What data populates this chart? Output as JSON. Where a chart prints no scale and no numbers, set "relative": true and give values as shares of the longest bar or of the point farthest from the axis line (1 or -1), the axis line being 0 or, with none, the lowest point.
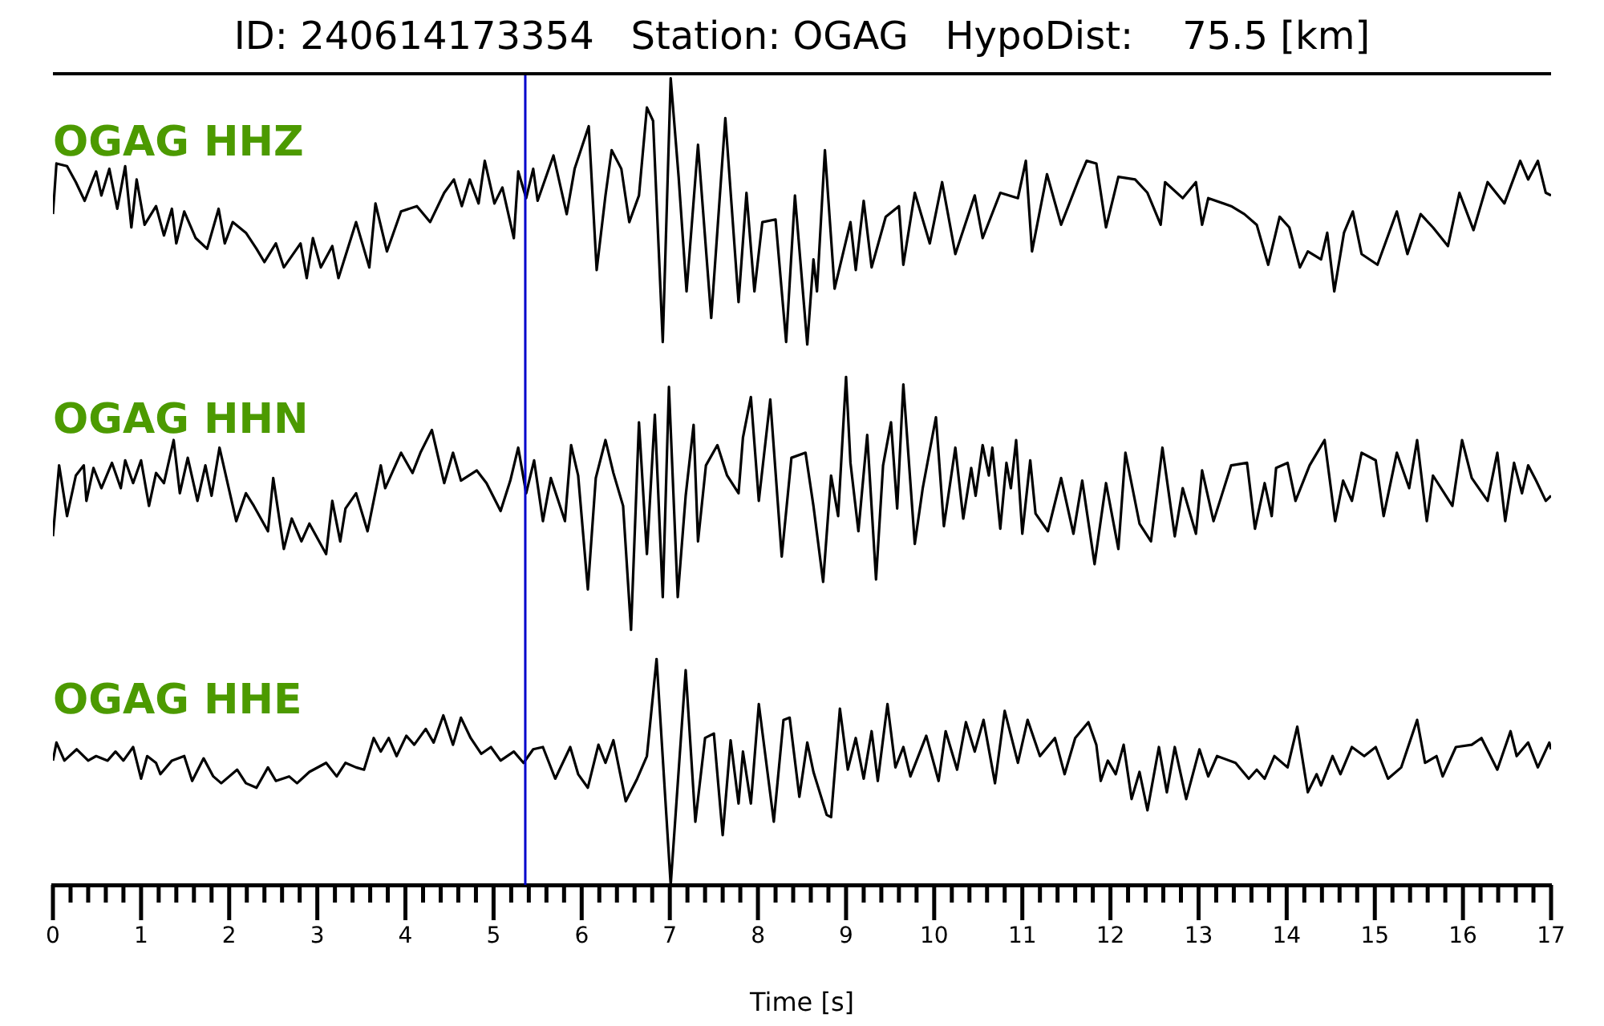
{
  "chart_data": [
    {
      "type": "line",
      "title": "ID: 240614173354   Station: OGAG   HypoDist:    75.5 [km]",
      "relative": true,
      "xlim": [
        0,
        17
      ],
      "tick_labels": false,
      "ref_lines": [
        {
          "axis": "x",
          "value": 5.36,
          "color": "#0000cc"
        }
      ],
      "series": [
        {
          "name": "OGAG HHZ",
          "color": "#000000",
          "x": [
            0,
            0.04,
            0.16,
            0.26,
            0.36,
            0.49,
            0.55,
            0.64,
            0.73,
            0.82,
            0.89,
            0.95,
            1.04,
            1.17,
            1.26,
            1.35,
            1.4,
            1.49,
            1.62,
            1.75,
            1.88,
            1.95,
            2.04,
            2.19,
            2.31,
            2.4,
            2.53,
            2.62,
            2.81,
            2.88,
            2.95,
            3.04,
            3.17,
            3.24,
            3.44,
            3.59,
            3.66,
            3.79,
            3.95,
            4.13,
            4.28,
            4.44,
            4.55,
            4.64,
            4.73,
            4.83,
            4.9,
            5.01,
            5.1,
            5.23,
            5.28,
            5.37,
            5.45,
            5.5,
            5.68,
            5.83,
            5.92,
            6.08,
            6.17,
            6.27,
            6.34,
            6.45,
            6.54,
            6.65,
            6.74,
            6.81,
            6.92,
            7.01,
            7.1,
            7.19,
            7.32,
            7.47,
            7.63,
            7.78,
            7.87,
            7.96,
            8.05,
            8.2,
            8.32,
            8.42,
            8.56,
            8.63,
            8.67,
            8.76,
            8.87,
            9.05,
            9.11,
            9.2,
            9.29,
            9.45,
            9.6,
            9.65,
            9.78,
            9.95,
            10.09,
            10.24,
            10.46,
            10.55,
            10.75,
            10.95,
            11.04,
            11.11,
            11.28,
            11.44,
            11.64,
            11.73,
            11.84,
            11.95,
            12.09,
            12.28,
            12.42,
            12.57,
            12.62,
            12.82,
            12.97,
            13.04,
            13.11,
            13.37,
            13.52,
            13.66,
            13.79,
            13.92,
            14.03,
            14.15,
            14.24,
            14.39,
            14.46,
            14.54,
            14.65,
            14.75,
            14.85,
            15.03,
            15.25,
            15.37,
            15.52,
            15.66,
            15.83,
            15.96,
            16.12,
            16.28,
            16.47,
            16.65,
            16.74,
            16.85,
            16.94,
            17
          ],
          "values": [
            0.49,
            0.68,
            0.67,
            0.61,
            0.54,
            0.65,
            0.56,
            0.66,
            0.51,
            0.67,
            0.44,
            0.62,
            0.45,
            0.52,
            0.41,
            0.51,
            0.38,
            0.5,
            0.4,
            0.36,
            0.51,
            0.38,
            0.46,
            0.42,
            0.36,
            0.31,
            0.38,
            0.29,
            0.38,
            0.25,
            0.4,
            0.29,
            0.37,
            0.25,
            0.46,
            0.29,
            0.53,
            0.35,
            0.5,
            0.52,
            0.46,
            0.57,
            0.62,
            0.52,
            0.62,
            0.53,
            0.69,
            0.53,
            0.59,
            0.4,
            0.65,
            0.55,
            0.66,
            0.54,
            0.71,
            0.49,
            0.66,
            0.82,
            0.28,
            0.56,
            0.73,
            0.66,
            0.46,
            0.56,
            0.89,
            0.84,
            0.01,
            1,
            0.63,
            0.2,
            0.75,
            0.1,
            0.85,
            0.16,
            0.57,
            0.2,
            0.46,
            0.47,
            0.01,
            0.56,
            0,
            0.32,
            0.2,
            0.73,
            0.21,
            0.46,
            0.28,
            0.54,
            0.29,
            0.48,
            0.52,
            0.3,
            0.57,
            0.38,
            0.61,
            0.34,
            0.56,
            0.4,
            0.57,
            0.55,
            0.69,
            0.35,
            0.64,
            0.45,
            0.62,
            0.69,
            0.68,
            0.44,
            0.63,
            0.62,
            0.57,
            0.45,
            0.61,
            0.55,
            0.61,
            0.45,
            0.55,
            0.52,
            0.49,
            0.45,
            0.3,
            0.48,
            0.44,
            0.29,
            0.35,
            0.32,
            0.42,
            0.2,
            0.42,
            0.5,
            0.34,
            0.3,
            0.5,
            0.34,
            0.49,
            0.44,
            0.37,
            0.57,
            0.43,
            0.61,
            0.53,
            0.69,
            0.62,
            0.69,
            0.57,
            0.56
          ]
        }
      ]
    },
    {
      "type": "line",
      "relative": true,
      "xlim": [
        0,
        17
      ],
      "tick_labels": false,
      "ref_lines": [
        {
          "axis": "x",
          "value": 5.36,
          "color": "#0000cc"
        }
      ],
      "series": [
        {
          "name": "OGAG HHN",
          "color": "#000000",
          "x": [
            0,
            0.07,
            0.16,
            0.26,
            0.35,
            0.38,
            0.46,
            0.55,
            0.67,
            0.77,
            0.82,
            0.91,
            1,
            1.09,
            1.17,
            1.26,
            1.37,
            1.44,
            1.53,
            1.64,
            1.73,
            1.8,
            1.89,
            2.08,
            2.19,
            2.28,
            2.44,
            2.5,
            2.62,
            2.71,
            2.82,
            2.91,
            3.1,
            3.17,
            3.26,
            3.32,
            3.44,
            3.57,
            3.72,
            3.77,
            3.95,
            4.08,
            4.17,
            4.3,
            4.44,
            4.54,
            4.63,
            4.81,
            4.92,
            5.08,
            5.19,
            5.28,
            5.37,
            5.46,
            5.56,
            5.65,
            5.81,
            5.88,
            5.96,
            6.07,
            6.16,
            6.27,
            6.36,
            6.47,
            6.56,
            6.65,
            6.74,
            6.83,
            6.92,
            6.99,
            7.09,
            7.18,
            7.27,
            7.32,
            7.41,
            7.54,
            7.65,
            7.78,
            7.83,
            7.92,
            8.01,
            8.14,
            8.27,
            8.38,
            8.54,
            8.63,
            8.74,
            8.83,
            8.91,
            9,
            9.05,
            9.14,
            9.24,
            9.34,
            9.42,
            9.51,
            9.58,
            9.65,
            9.78,
            9.87,
            10.02,
            10.11,
            10.24,
            10.33,
            10.42,
            10.47,
            10.55,
            10.62,
            10.66,
            10.75,
            10.82,
            10.87,
            10.93,
            11,
            11.09,
            11.15,
            11.29,
            11.44,
            11.58,
            11.68,
            11.82,
            11.95,
            12.09,
            12.17,
            12.33,
            12.46,
            12.59,
            12.73,
            12.82,
            12.97,
            13.04,
            13.17,
            13.37,
            13.55,
            13.64,
            13.75,
            13.83,
            13.88,
            14.01,
            14.1,
            14.26,
            14.43,
            14.55,
            14.64,
            14.74,
            14.85,
            15.01,
            15.1,
            15.25,
            15.39,
            15.48,
            15.59,
            15.66,
            15.88,
            15.99,
            16.1,
            16.28,
            16.39,
            16.48,
            16.58,
            16.67,
            16.74,
            16.83,
            16.94,
            17
          ],
          "values": [
            0.37,
            0.65,
            0.45,
            0.61,
            0.65,
            0.51,
            0.64,
            0.56,
            0.66,
            0.56,
            0.67,
            0.58,
            0.67,
            0.49,
            0.62,
            0.58,
            0.75,
            0.54,
            0.68,
            0.51,
            0.65,
            0.53,
            0.72,
            0.43,
            0.54,
            0.49,
            0.39,
            0.6,
            0.32,
            0.44,
            0.35,
            0.42,
            0.3,
            0.51,
            0.35,
            0.48,
            0.54,
            0.39,
            0.65,
            0.56,
            0.7,
            0.62,
            0.7,
            0.79,
            0.58,
            0.7,
            0.59,
            0.63,
            0.58,
            0.47,
            0.59,
            0.72,
            0.54,
            0.67,
            0.43,
            0.6,
            0.43,
            0.73,
            0.61,
            0.16,
            0.6,
            0.75,
            0.62,
            0.49,
            0,
            0.82,
            0.3,
            0.85,
            0.13,
            0.96,
            0.13,
            0.53,
            0.81,
            0.35,
            0.65,
            0.73,
            0.61,
            0.54,
            0.76,
            0.92,
            0.51,
            0.91,
            0.29,
            0.68,
            0.7,
            0.49,
            0.19,
            0.61,
            0.45,
            1,
            0.66,
            0.39,
            0.77,
            0.2,
            0.65,
            0.82,
            0.48,
            0.97,
            0.34,
            0.56,
            0.84,
            0.41,
            0.72,
            0.44,
            0.64,
            0.53,
            0.73,
            0.61,
            0.72,
            0.4,
            0.66,
            0.56,
            0.75,
            0.38,
            0.67,
            0.46,
            0.39,
            0.6,
            0.38,
            0.59,
            0.26,
            0.58,
            0.32,
            0.7,
            0.42,
            0.35,
            0.72,
            0.37,
            0.56,
            0.38,
            0.63,
            0.43,
            0.65,
            0.66,
            0.4,
            0.58,
            0.45,
            0.64,
            0.66,
            0.51,
            0.65,
            0.75,
            0.43,
            0.59,
            0.51,
            0.7,
            0.67,
            0.45,
            0.7,
            0.56,
            0.75,
            0.43,
            0.61,
            0.49,
            0.75,
            0.6,
            0.51,
            0.7,
            0.43,
            0.66,
            0.54,
            0.65,
            0.59,
            0.51,
            0.53
          ]
        }
      ]
    },
    {
      "type": "line",
      "relative": true,
      "xlim": [
        0,
        17
      ],
      "tick_labels": "x",
      "xlabel": "Time [s]",
      "xticks": [
        0,
        {
          "value": 0.2,
          "label": null
        },
        {
          "value": 0.4,
          "label": null
        },
        {
          "value": 0.6,
          "label": null
        },
        {
          "value": 0.8,
          "label": null
        },
        1,
        {
          "value": 1.2,
          "label": null
        },
        {
          "value": 1.4,
          "label": null
        },
        {
          "value": 1.6,
          "label": null
        },
        {
          "value": 1.8,
          "label": null
        },
        2,
        {
          "value": 2.2,
          "label": null
        },
        {
          "value": 2.4,
          "label": null
        },
        {
          "value": 2.6,
          "label": null
        },
        {
          "value": 2.8,
          "label": null
        },
        3,
        {
          "value": 3.2,
          "label": null
        },
        {
          "value": 3.4,
          "label": null
        },
        {
          "value": 3.6,
          "label": null
        },
        {
          "value": 3.8,
          "label": null
        },
        4,
        {
          "value": 4.2,
          "label": null
        },
        {
          "value": 4.4,
          "label": null
        },
        {
          "value": 4.6,
          "label": null
        },
        {
          "value": 4.8,
          "label": null
        },
        5,
        {
          "value": 5.2,
          "label": null
        },
        {
          "value": 5.4,
          "label": null
        },
        {
          "value": 5.6,
          "label": null
        },
        {
          "value": 5.8,
          "label": null
        },
        6,
        {
          "value": 6.2,
          "label": null
        },
        {
          "value": 6.4,
          "label": null
        },
        {
          "value": 6.6,
          "label": null
        },
        {
          "value": 6.8,
          "label": null
        },
        7,
        {
          "value": 7.2,
          "label": null
        },
        {
          "value": 7.4,
          "label": null
        },
        {
          "value": 7.6,
          "label": null
        },
        {
          "value": 7.8,
          "label": null
        },
        8,
        {
          "value": 8.2,
          "label": null
        },
        {
          "value": 8.4,
          "label": null
        },
        {
          "value": 8.6,
          "label": null
        },
        {
          "value": 8.8,
          "label": null
        },
        9,
        {
          "value": 9.2,
          "label": null
        },
        {
          "value": 9.4,
          "label": null
        },
        {
          "value": 9.6,
          "label": null
        },
        {
          "value": 9.8,
          "label": null
        },
        10,
        {
          "value": 10.2,
          "label": null
        },
        {
          "value": 10.4,
          "label": null
        },
        {
          "value": 10.6,
          "label": null
        },
        {
          "value": 10.8,
          "label": null
        },
        11,
        {
          "value": 11.2,
          "label": null
        },
        {
          "value": 11.4,
          "label": null
        },
        {
          "value": 11.6,
          "label": null
        },
        {
          "value": 11.8,
          "label": null
        },
        12,
        {
          "value": 12.2,
          "label": null
        },
        {
          "value": 12.4,
          "label": null
        },
        {
          "value": 12.6,
          "label": null
        },
        {
          "value": 12.8,
          "label": null
        },
        13,
        {
          "value": 13.2,
          "label": null
        },
        {
          "value": 13.4,
          "label": null
        },
        {
          "value": 13.6,
          "label": null
        },
        {
          "value": 13.8,
          "label": null
        },
        14,
        {
          "value": 14.2,
          "label": null
        },
        {
          "value": 14.4,
          "label": null
        },
        {
          "value": 14.6,
          "label": null
        },
        {
          "value": 14.8,
          "label": null
        },
        15,
        {
          "value": 15.2,
          "label": null
        },
        {
          "value": 15.4,
          "label": null
        },
        {
          "value": 15.6,
          "label": null
        },
        {
          "value": 15.8,
          "label": null
        },
        16,
        {
          "value": 16.2,
          "label": null
        },
        {
          "value": 16.4,
          "label": null
        },
        {
          "value": 16.6,
          "label": null
        },
        {
          "value": 16.8,
          "label": null
        },
        17
      ],
      "ref_lines": [
        {
          "axis": "x",
          "value": 5.36,
          "color": "#0000cc"
        }
      ],
      "series": [
        {
          "name": "OGAG HHE",
          "color": "#000000",
          "x": [
            0,
            0.04,
            0.13,
            0.27,
            0.4,
            0.49,
            0.62,
            0.71,
            0.8,
            0.91,
            1,
            1.07,
            1.17,
            1.22,
            1.35,
            1.49,
            1.58,
            1.71,
            1.82,
            1.91,
            2.09,
            2.19,
            2.31,
            2.44,
            2.53,
            2.68,
            2.77,
            2.91,
            3.1,
            3.22,
            3.32,
            3.44,
            3.53,
            3.64,
            3.72,
            3.81,
            3.9,
            4.01,
            4.1,
            4.23,
            4.32,
            4.43,
            4.54,
            4.63,
            4.74,
            4.86,
            4.97,
            5.08,
            5.23,
            5.34,
            5.45,
            5.56,
            5.7,
            5.87,
            5.96,
            6.07,
            6.19,
            6.27,
            6.36,
            6.5,
            6.63,
            6.74,
            6.85,
            7.01,
            7.18,
            7.29,
            7.4,
            7.5,
            7.6,
            7.69,
            7.78,
            7.83,
            7.92,
            8.01,
            8.18,
            8.29,
            8.36,
            8.47,
            8.56,
            8.63,
            8.78,
            8.83,
            8.93,
            9.02,
            9.11,
            9.2,
            9.29,
            9.36,
            9.47,
            9.56,
            9.65,
            9.73,
            9.91,
            10.05,
            10.13,
            10.26,
            10.36,
            10.46,
            10.56,
            10.69,
            10.8,
            10.95,
            11.06,
            11.2,
            11.37,
            11.48,
            11.6,
            11.75,
            11.84,
            11.89,
            11.97,
            12.06,
            12.15,
            12.24,
            12.33,
            12.42,
            12.55,
            12.64,
            12.73,
            12.86,
            13.01,
            13.11,
            13.21,
            13.42,
            13.57,
            13.66,
            13.75,
            13.86,
            14.01,
            14.12,
            14.24,
            14.34,
            14.39,
            14.52,
            14.61,
            14.74,
            14.88,
            15.01,
            15.15,
            15.3,
            15.48,
            15.57,
            15.7,
            15.77,
            15.92,
            16.1,
            16.21,
            16.39,
            16.54,
            16.61,
            16.74,
            16.85,
            16.98,
            17
          ],
          "values": [
            0.55,
            0.63,
            0.55,
            0.6,
            0.55,
            0.57,
            0.55,
            0.59,
            0.55,
            0.61,
            0.47,
            0.57,
            0.54,
            0.49,
            0.55,
            0.57,
            0.46,
            0.56,
            0.48,
            0.45,
            0.51,
            0.45,
            0.43,
            0.52,
            0.46,
            0.48,
            0.45,
            0.5,
            0.54,
            0.48,
            0.54,
            0.52,
            0.51,
            0.65,
            0.59,
            0.65,
            0.57,
            0.66,
            0.62,
            0.69,
            0.63,
            0.75,
            0.62,
            0.74,
            0.65,
            0.58,
            0.61,
            0.55,
            0.59,
            0.54,
            0.6,
            0.61,
            0.47,
            0.61,
            0.49,
            0.43,
            0.62,
            0.54,
            0.64,
            0.37,
            0.47,
            0.57,
            1,
            0,
            0.95,
            0.28,
            0.65,
            0.67,
            0.22,
            0.64,
            0.36,
            0.59,
            0.36,
            0.8,
            0.28,
            0.73,
            0.74,
            0.39,
            0.63,
            0.5,
            0.31,
            0.3,
            0.78,
            0.51,
            0.65,
            0.47,
            0.68,
            0.46,
            0.8,
            0.52,
            0.61,
            0.48,
            0.66,
            0.46,
            0.68,
            0.51,
            0.72,
            0.59,
            0.73,
            0.45,
            0.77,
            0.54,
            0.73,
            0.57,
            0.65,
            0.49,
            0.65,
            0.72,
            0.62,
            0.46,
            0.55,
            0.49,
            0.62,
            0.38,
            0.5,
            0.33,
            0.61,
            0.41,
            0.61,
            0.38,
            0.6,
            0.48,
            0.57,
            0.54,
            0.47,
            0.51,
            0.47,
            0.57,
            0.52,
            0.7,
            0.41,
            0.49,
            0.44,
            0.57,
            0.49,
            0.61,
            0.57,
            0.61,
            0.47,
            0.52,
            0.73,
            0.54,
            0.57,
            0.48,
            0.61,
            0.62,
            0.65,
            0.51,
            0.68,
            0.57,
            0.63,
            0.52,
            0.63,
            0.6
          ]
        }
      ]
    }
  ]
}
